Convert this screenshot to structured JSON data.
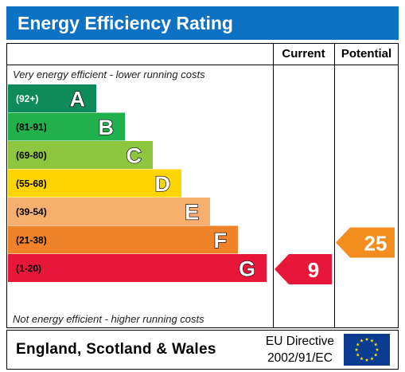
{
  "header": {
    "title": "Energy Efficiency Rating"
  },
  "columns": {
    "current": "Current",
    "potential": "Potential"
  },
  "notes": {
    "top": "Very energy efficient - lower running costs",
    "bottom": "Not energy efficient - higher running costs"
  },
  "footer": {
    "country": "England, Scotland & Wales",
    "directive_line1": "EU Directive",
    "directive_line2": "2002/91/EC"
  },
  "colors": {
    "title_bar": "#0d72c4",
    "current_arrow": "#e8173a",
    "potential_arrow": "#f28d1e"
  },
  "icons": {
    "flag": "eu-flag-icon"
  },
  "chart_data": {
    "type": "bar",
    "title": "Energy Efficiency Rating",
    "categories": [
      "A",
      "B",
      "C",
      "D",
      "E",
      "F",
      "G"
    ],
    "bands": [
      {
        "letter": "A",
        "range": "(92+)",
        "color": "#0f8a5a",
        "text_color": "#ffffff"
      },
      {
        "letter": "B",
        "range": "(81-91)",
        "color": "#21b04b",
        "text_color": "#000000"
      },
      {
        "letter": "C",
        "range": "(69-80)",
        "color": "#8ec63f",
        "text_color": "#000000"
      },
      {
        "letter": "D",
        "range": "(55-68)",
        "color": "#ffd500",
        "text_color": "#000000"
      },
      {
        "letter": "E",
        "range": "(39-54)",
        "color": "#f7af6d",
        "text_color": "#000000"
      },
      {
        "letter": "F",
        "range": "(21-38)",
        "color": "#f0822a",
        "text_color": "#000000"
      },
      {
        "letter": "G",
        "range": "(1-20)",
        "color": "#e8173a",
        "text_color": "#000000"
      }
    ],
    "current": {
      "value": 9,
      "band": "G",
      "label": "9"
    },
    "potential": {
      "value": 25,
      "band": "F",
      "label": "25"
    }
  }
}
